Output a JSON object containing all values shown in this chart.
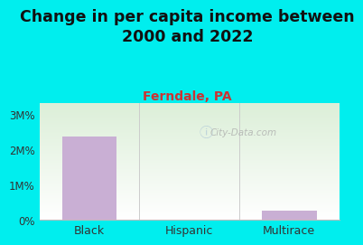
{
  "title": "Change in per capita income between\n2000 and 2022",
  "subtitle": "Ferndale, PA",
  "categories": [
    "Black",
    "Hispanic",
    "Multirace"
  ],
  "values": [
    2.35,
    0,
    0.27
  ],
  "bar_color": "#c9afd4",
  "title_fontsize": 12.5,
  "subtitle_fontsize": 10,
  "subtitle_color": "#cc3333",
  "title_color": "#111111",
  "background_color": "#00eeee",
  "plot_bg_top": "#dcefd8",
  "plot_bg_bottom": "#ffffff",
  "yticks": [
    0,
    1,
    2,
    3
  ],
  "ytick_labels": [
    "0%",
    "1M%",
    "2M%",
    "3M%"
  ],
  "ylim": [
    0,
    3.3
  ],
  "watermark": "City-Data.com"
}
